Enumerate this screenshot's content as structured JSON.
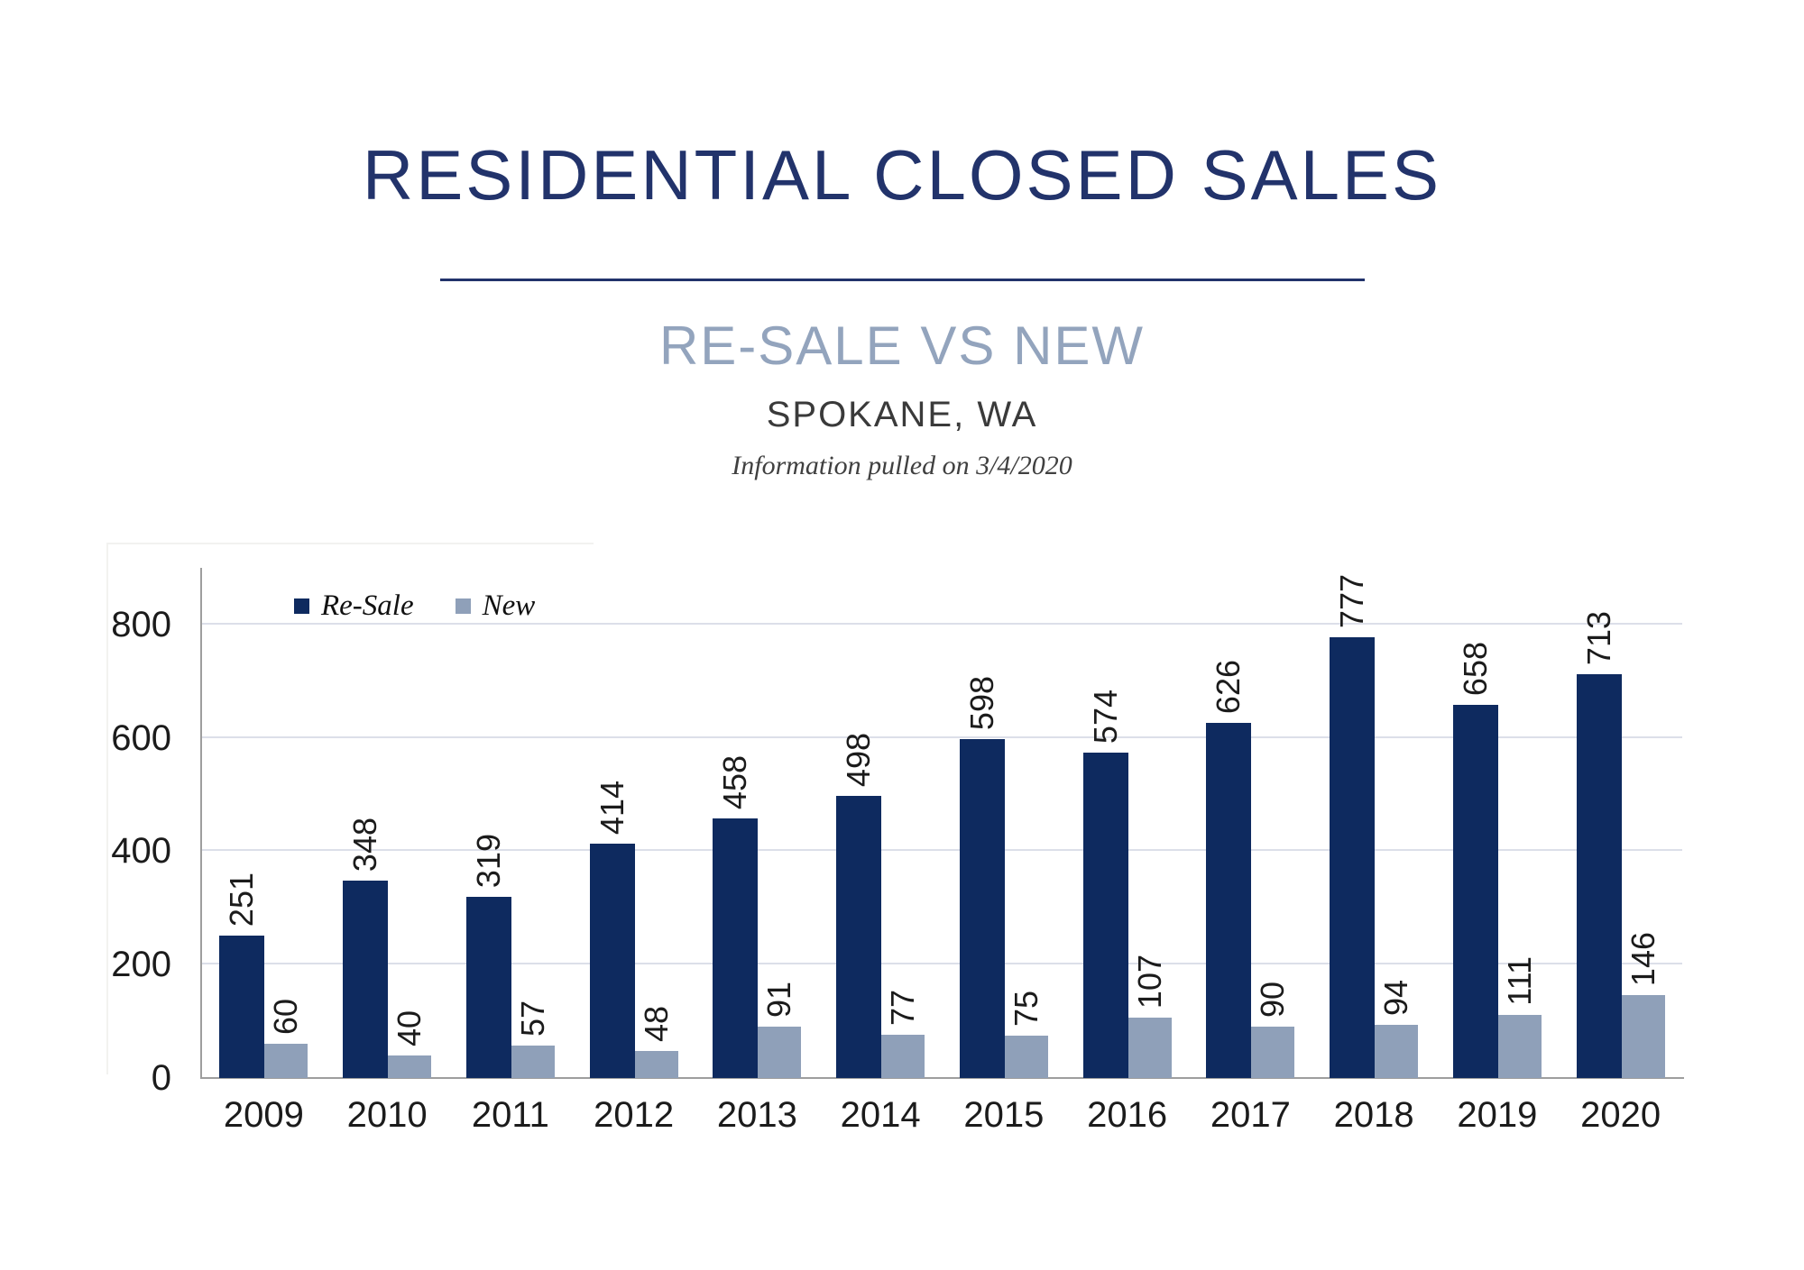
{
  "header": {
    "title": "RESIDENTIAL CLOSED SALES",
    "subtitle": "RE-SALE VS NEW",
    "location": "SPOKANE, WA",
    "note": "Information pulled on 3/4/2020"
  },
  "chart_data": {
    "type": "bar",
    "categories": [
      "2009",
      "2010",
      "2011",
      "2012",
      "2013",
      "2014",
      "2015",
      "2016",
      "2017",
      "2018",
      "2019",
      "2020"
    ],
    "series": [
      {
        "name": "Re-Sale",
        "color": "#0e2a5f",
        "values": [
          251,
          348,
          319,
          414,
          458,
          498,
          598,
          574,
          626,
          777,
          658,
          713
        ]
      },
      {
        "name": "New",
        "color": "#8fa0b9",
        "values": [
          60,
          40,
          57,
          48,
          91,
          77,
          75,
          107,
          90,
          94,
          111,
          146
        ]
      }
    ],
    "y_ticks": [
      0,
      200,
      400,
      600,
      800
    ],
    "ylim": [
      0,
      900
    ],
    "xlabel": "",
    "ylabel": "",
    "grid": true,
    "legend_position": "top-left",
    "bar_value_labels": "rotated-90"
  },
  "colors": {
    "title": "#22336b",
    "subtitle": "#93a4bd",
    "location": "#3a3a3a",
    "note": "#404040",
    "gridline": "#dcdfe9",
    "axis": "#9e9e9e",
    "label_text": "#1b1b1b"
  }
}
